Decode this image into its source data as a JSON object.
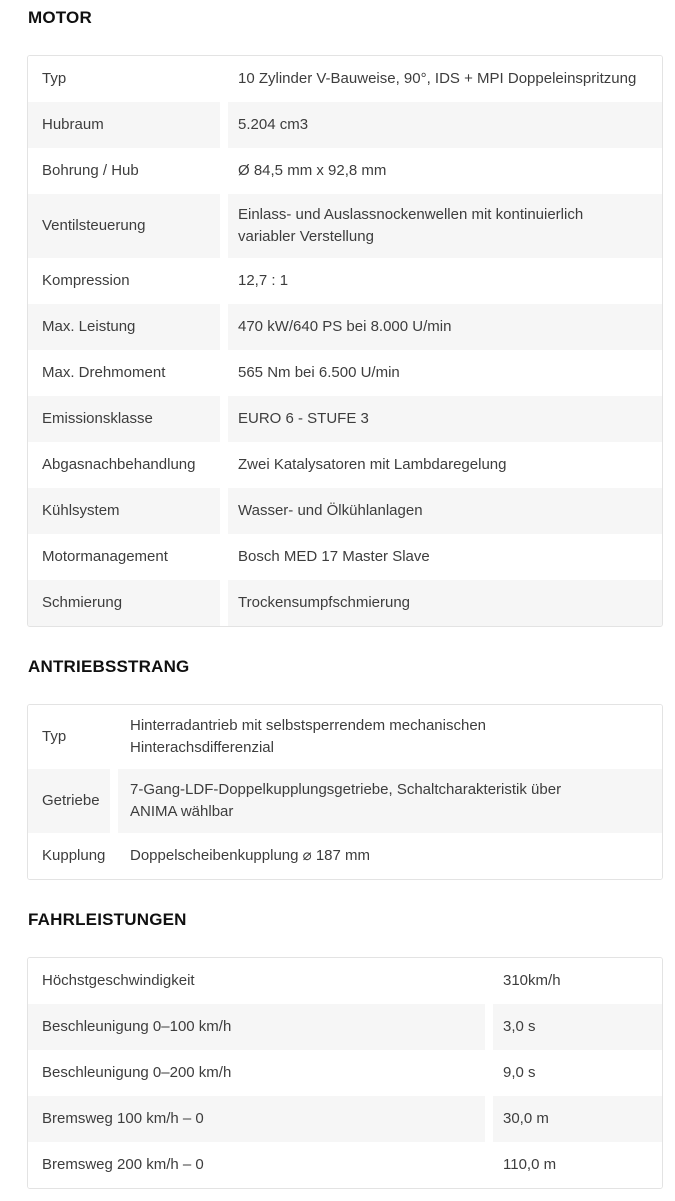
{
  "colors": {
    "stripe": "#f6f6f6",
    "table_border": "#e3e3e3",
    "heading_text": "#101010",
    "body_text": "#3d3d3d"
  },
  "sections": [
    {
      "id": "motor",
      "title": "MOTOR",
      "rows": [
        {
          "label": "Typ",
          "value": "10 Zylinder V-Bauweise, 90°, IDS + MPI Doppeleinspritzung"
        },
        {
          "label": "Hubraum",
          "value": "5.204 cm3"
        },
        {
          "label": "Bohrung / Hub",
          "value": "Ø 84,5 mm x 92,8 mm"
        },
        {
          "label": "Ventilsteuerung",
          "value": "Einlass- und Auslassnockenwellen mit kontinuierlich variabler Verstellung"
        },
        {
          "label": "Kompression",
          "value": "12,7 : 1"
        },
        {
          "label": "Max. Leistung",
          "value": "470 kW/640 PS bei 8.000 U/min"
        },
        {
          "label": "Max. Drehmoment",
          "value": "565 Nm bei 6.500 U/min"
        },
        {
          "label": "Emissionsklasse",
          "value": "EURO 6 - STUFE 3"
        },
        {
          "label": "Abgasnachbehandlung",
          "value": "Zwei Katalysatoren mit Lambdaregelung"
        },
        {
          "label": "Kühlsystem",
          "value": "Wasser- und Ölkühlanlagen"
        },
        {
          "label": "Motormanagement",
          "value": "Bosch MED 17 Master Slave"
        },
        {
          "label": "Schmierung",
          "value": "Trockensumpfschmierung"
        }
      ]
    },
    {
      "id": "antriebsstrang",
      "title": "ANTRIEBSSTRANG",
      "rows": [
        {
          "label": "Typ",
          "value": "Hinterradantrieb mit selbstsperrendem mechanischen Hinterachsdifferenzial"
        },
        {
          "label": "Getriebe",
          "value": "7-Gang-LDF-Doppelkupplungsgetriebe, Schaltcharakteristik über ANIMA wählbar"
        },
        {
          "label": "Kupplung",
          "value": "Doppelscheibenkupplung ⌀ 187 mm"
        }
      ]
    },
    {
      "id": "fahrleistungen",
      "title": "FAHRLEISTUNGEN",
      "rows": [
        {
          "label": "Höchstgeschwindigkeit",
          "value": "310km/h"
        },
        {
          "label": "Beschleunigung 0–100 km/h",
          "value": "3,0 s"
        },
        {
          "label": "Beschleunigung 0–200 km/h",
          "value": "9,0 s"
        },
        {
          "label": "Bremsweg 100 km/h – 0",
          "value": "30,0 m"
        },
        {
          "label": "Bremsweg 200 km/h – 0",
          "value": "110,0 m"
        }
      ]
    }
  ]
}
